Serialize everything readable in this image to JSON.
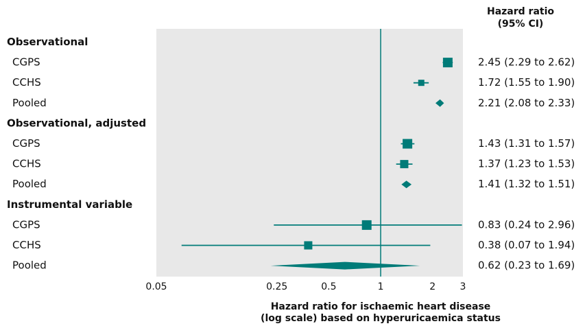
{
  "chart_data": {
    "type": "forest",
    "scale": "log",
    "xlim": [
      0.05,
      3
    ],
    "ticks": [
      0.05,
      0.25,
      0.5,
      1,
      2,
      3
    ],
    "tick_labels": [
      "0.05",
      "0.25",
      "0.5",
      "1",
      "2",
      "3"
    ],
    "reference_line": 1,
    "column_title": [
      "Hazard ratio",
      "(95% CI)"
    ],
    "xlabel": [
      "Hazard ratio for ischaemic heart disease",
      "(log scale) based on hyperuricaemica status"
    ],
    "colors": {
      "marker": "#007b78",
      "panel": "#e8e8e8",
      "refline": "#007b78"
    },
    "groups": [
      {
        "label": "Observational",
        "rows": [
          {
            "label": "CGPS",
            "hr": 2.45,
            "lo": 2.29,
            "hi": 2.62,
            "text": "2.45 (2.29 to 2.62)",
            "marker": "square",
            "size": "large"
          },
          {
            "label": "CCHS",
            "hr": 1.72,
            "lo": 1.55,
            "hi": 1.9,
            "text": "1.72 (1.55 to 1.90)",
            "marker": "square",
            "size": "small"
          },
          {
            "label": "Pooled",
            "hr": 2.21,
            "lo": 2.08,
            "hi": 2.33,
            "text": "2.21 (2.08 to 2.33)",
            "marker": "diamond"
          }
        ]
      },
      {
        "label": "Observational, adjusted",
        "rows": [
          {
            "label": "CGPS",
            "hr": 1.43,
            "lo": 1.31,
            "hi": 1.57,
            "text": "1.43 (1.31 to 1.57)",
            "marker": "square",
            "size": "large"
          },
          {
            "label": "CCHS",
            "hr": 1.37,
            "lo": 1.23,
            "hi": 1.53,
            "text": "1.37 (1.23 to 1.53)",
            "marker": "square",
            "size": "medium"
          },
          {
            "label": "Pooled",
            "hr": 1.41,
            "lo": 1.32,
            "hi": 1.51,
            "text": "1.41 (1.32 to 1.51)",
            "marker": "diamond"
          }
        ]
      },
      {
        "label": "Instrumental variable",
        "rows": [
          {
            "label": "CGPS",
            "hr": 0.83,
            "lo": 0.24,
            "hi": 2.96,
            "text": "0.83 (0.24 to 2.96)",
            "marker": "square",
            "size": "large"
          },
          {
            "label": "CCHS",
            "hr": 0.38,
            "lo": 0.07,
            "hi": 1.94,
            "text": "0.38 (0.07 to 1.94)",
            "marker": "square",
            "size": "medium"
          },
          {
            "label": "Pooled",
            "hr": 0.62,
            "lo": 0.23,
            "hi": 1.69,
            "text": "0.62 (0.23 to 1.69)",
            "marker": "diamond"
          }
        ]
      }
    ]
  }
}
